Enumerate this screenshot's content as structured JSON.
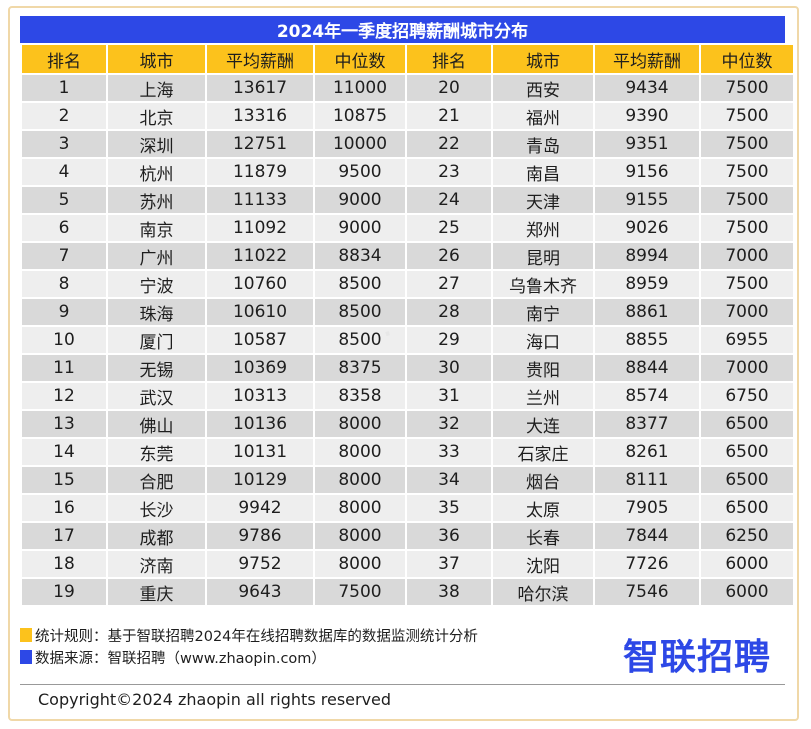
{
  "title": "2024年一季度招聘薪酬城市分布",
  "headers": [
    "排名",
    "城市",
    "平均薪酬",
    "中位数",
    "排名",
    "城市",
    "平均薪酬",
    "中位数"
  ],
  "rows": [
    [
      "1",
      "上海",
      "13617",
      "11000",
      "20",
      "西安",
      "9434",
      "7500"
    ],
    [
      "2",
      "北京",
      "13316",
      "10875",
      "21",
      "福州",
      "9390",
      "7500"
    ],
    [
      "3",
      "深圳",
      "12751",
      "10000",
      "22",
      "青岛",
      "9351",
      "7500"
    ],
    [
      "4",
      "杭州",
      "11879",
      "9500",
      "23",
      "南昌",
      "9156",
      "7500"
    ],
    [
      "5",
      "苏州",
      "11133",
      "9000",
      "24",
      "天津",
      "9155",
      "7500"
    ],
    [
      "6",
      "南京",
      "11092",
      "9000",
      "25",
      "郑州",
      "9026",
      "7500"
    ],
    [
      "7",
      "广州",
      "11022",
      "8834",
      "26",
      "昆明",
      "8994",
      "7000"
    ],
    [
      "8",
      "宁波",
      "10760",
      "8500",
      "27",
      "乌鲁木齐",
      "8959",
      "7500"
    ],
    [
      "9",
      "珠海",
      "10610",
      "8500",
      "28",
      "南宁",
      "8861",
      "7000"
    ],
    [
      "10",
      "厦门",
      "10587",
      "8500",
      "29",
      "海口",
      "8855",
      "6955"
    ],
    [
      "11",
      "无锡",
      "10369",
      "8375",
      "30",
      "贵阳",
      "8844",
      "7000"
    ],
    [
      "12",
      "武汉",
      "10313",
      "8358",
      "31",
      "兰州",
      "8574",
      "6750"
    ],
    [
      "13",
      "佛山",
      "10136",
      "8000",
      "32",
      "大连",
      "8377",
      "6500"
    ],
    [
      "14",
      "东莞",
      "10131",
      "8000",
      "33",
      "石家庄",
      "8261",
      "6500"
    ],
    [
      "15",
      "合肥",
      "10129",
      "8000",
      "34",
      "烟台",
      "8111",
      "6500"
    ],
    [
      "16",
      "长沙",
      "9942",
      "8000",
      "35",
      "太原",
      "7905",
      "6500"
    ],
    [
      "17",
      "成都",
      "9786",
      "8000",
      "36",
      "长春",
      "7844",
      "6250"
    ],
    [
      "18",
      "济南",
      "9752",
      "8000",
      "37",
      "沈阳",
      "7726",
      "6000"
    ],
    [
      "19",
      "重庆",
      "9643",
      "7500",
      "38",
      "哈尔滨",
      "7546",
      "6000"
    ]
  ],
  "footer": {
    "rule": "统计规则：基于智联招聘2024年在线招聘数据库的数据监测统计分析",
    "source": "数据来源：智联招聘（www.zhaopin.com）",
    "logo": "智联招聘",
    "copyright": "Copyright©2024 zhaopin all rights reserved"
  },
  "colors": {
    "title_bg": "#2d48e6",
    "header_bg": "#fcc21c",
    "row_odd": "#d9d9d9",
    "row_even": "#eeeeee",
    "logo": "#2d48e6"
  }
}
